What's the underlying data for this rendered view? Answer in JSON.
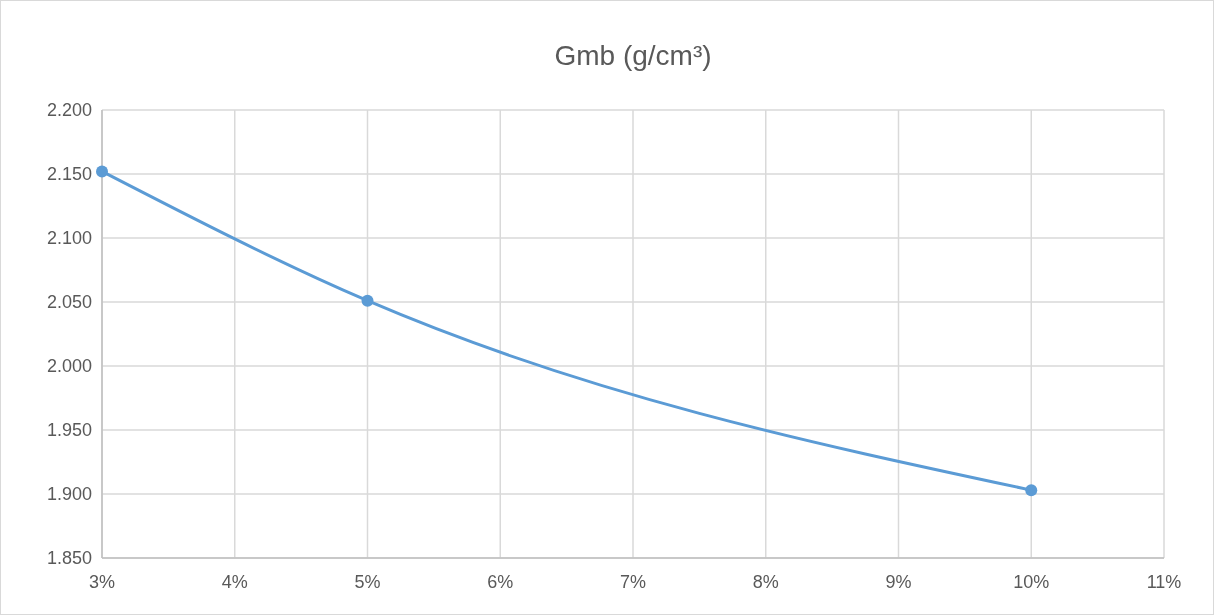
{
  "chart_data": {
    "type": "line",
    "title": "Gmb (g/cm³)",
    "x": [
      3,
      5,
      10
    ],
    "series": [
      {
        "color": "#5b9bd5",
        "values": [
          2.152,
          2.051,
          1.903
        ]
      }
    ],
    "xlim": [
      3,
      11
    ],
    "xticks": [
      {
        "value": 3,
        "label": "3%"
      },
      {
        "value": 4,
        "label": "4%"
      },
      {
        "value": 5,
        "label": "5%"
      },
      {
        "value": 6,
        "label": "6%"
      },
      {
        "value": 7,
        "label": "7%"
      },
      {
        "value": 8,
        "label": "8%"
      },
      {
        "value": 9,
        "label": "9%"
      },
      {
        "value": 10,
        "label": "10%"
      },
      {
        "value": 11,
        "label": "11%"
      }
    ],
    "ylim": [
      1.85,
      2.2
    ],
    "yticks": [
      {
        "value": 1.85,
        "label": "1.850"
      },
      {
        "value": 1.9,
        "label": "1.900"
      },
      {
        "value": 1.95,
        "label": "1.950"
      },
      {
        "value": 2.0,
        "label": "2.000"
      },
      {
        "value": 2.05,
        "label": "2.050"
      },
      {
        "value": 2.1,
        "label": "2.100"
      },
      {
        "value": 2.15,
        "label": "2.150"
      },
      {
        "value": 2.2,
        "label": "2.200"
      }
    ],
    "grid": true,
    "marker": "circle",
    "line_style": "solid"
  }
}
